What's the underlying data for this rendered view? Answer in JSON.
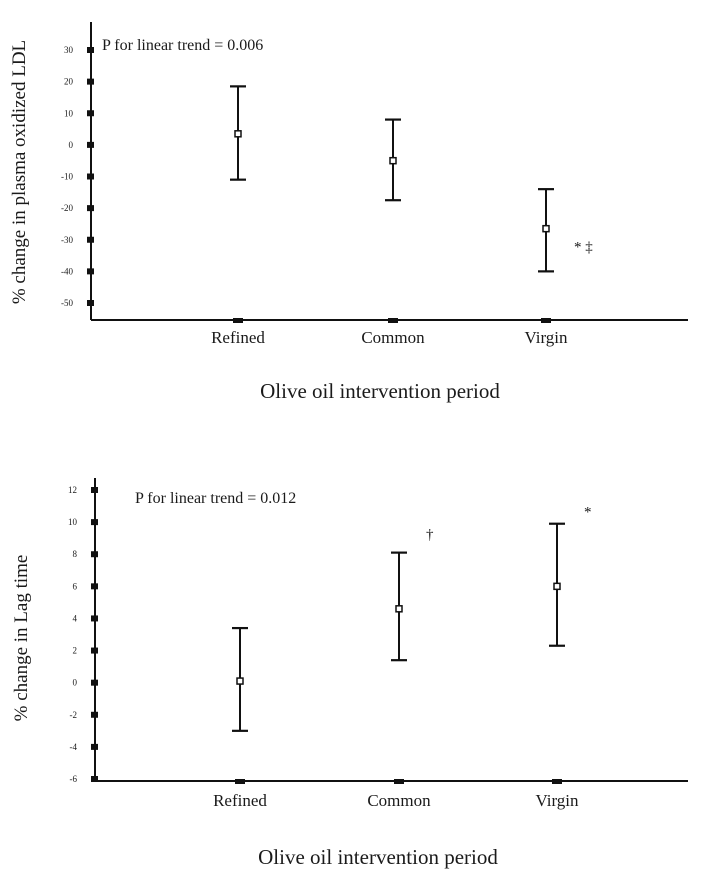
{
  "chart_data": [
    {
      "type": "scatter",
      "title": "",
      "xlabel": "Olive oil intervention period",
      "ylabel": "% change in plasma oxidized LDL",
      "annotation": "P for linear trend = 0.006",
      "categories": [
        "Refined",
        "Common",
        "Virgin"
      ],
      "ylim": [
        -54,
        40
      ],
      "yticks": [
        30,
        20,
        10,
        0,
        -10,
        -20,
        -30,
        -40,
        -50
      ],
      "series": [
        {
          "values": [
            3.5,
            -5,
            -26.5
          ],
          "lower": [
            -11,
            -17.5,
            -40
          ],
          "upper": [
            18.5,
            8,
            -14
          ],
          "markers": [
            "",
            "",
            "* ‡"
          ]
        }
      ]
    },
    {
      "type": "scatter",
      "title": "",
      "xlabel": "Olive oil intervention period",
      "ylabel": "% change in Lag time",
      "annotation": "P for linear trend = 0.012",
      "categories": [
        "Refined",
        "Common",
        "Virgin"
      ],
      "ylim": [
        -6,
        13.5
      ],
      "yticks": [
        12,
        10,
        8,
        6,
        4,
        2,
        0,
        -2,
        -4,
        -6
      ],
      "series": [
        {
          "values": [
            0.1,
            4.6,
            6.0
          ],
          "lower": [
            -3.0,
            1.4,
            2.3
          ],
          "upper": [
            3.4,
            8.1,
            9.9
          ],
          "markers": [
            "",
            "†",
            "*"
          ]
        }
      ]
    }
  ]
}
